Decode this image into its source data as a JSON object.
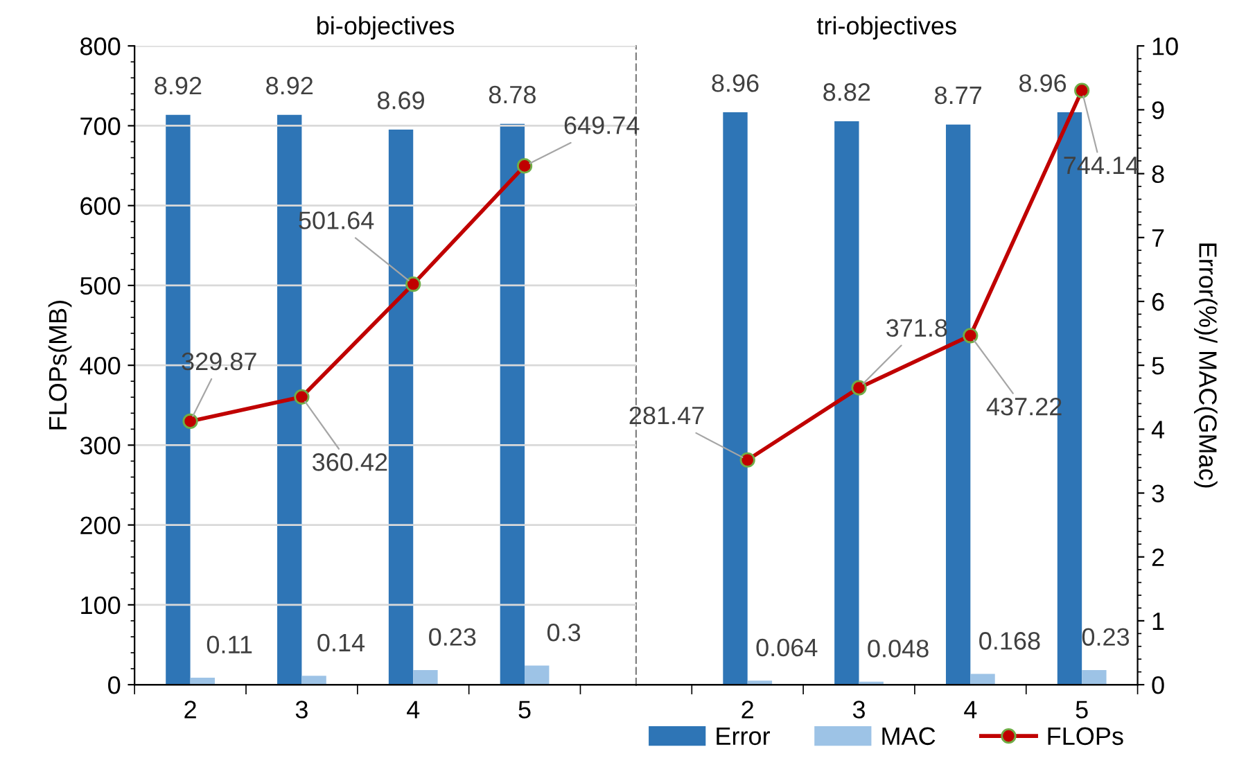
{
  "chart_data": [
    {
      "type": "bar",
      "title": "bi-objectives",
      "ylabel": "FLOPs(MB)",
      "categories": [
        "2",
        "3",
        "4",
        "5"
      ],
      "series": [
        {
          "color": "#2e75b6",
          "axis": "y2",
          "values": [
            8.92,
            8.92,
            8.69,
            8.78
          ]
        },
        {
          "color": "#9dc3e6",
          "axis": "y2",
          "values": [
            0.11,
            0.14,
            0.23,
            0.3
          ]
        },
        {
          "type": "line",
          "color": "#c00000",
          "marker": "circle",
          "values": [
            329.87,
            360.42,
            501.64,
            649.74
          ]
        }
      ],
      "ylim": [
        0,
        800
      ],
      "yticks": [
        0,
        100,
        200,
        300,
        400,
        500,
        600,
        700,
        800
      ],
      "y2lim": [
        0,
        10
      ],
      "grid": "y",
      "data_labels": true,
      "tick_labels": [
        "x",
        "y"
      ],
      "legend": false
    },
    {
      "type": "bar",
      "title": "tri-objectives",
      "y2label": "Error(%)/ MAC(GMac)",
      "categories": [
        "2",
        "3",
        "4",
        "5"
      ],
      "series": [
        {
          "name": "Error",
          "color": "#2e75b6",
          "axis": "y2",
          "values": [
            8.96,
            8.82,
            8.77,
            8.96
          ]
        },
        {
          "name": "MAC",
          "color": "#9dc3e6",
          "axis": "y2",
          "values": [
            0.064,
            0.048,
            0.168,
            0.23
          ]
        },
        {
          "name": "FLOPs",
          "type": "line",
          "color": "#c00000",
          "marker": "circle",
          "values": [
            281.47,
            371.8,
            437.22,
            744.14
          ]
        }
      ],
      "ylim": [
        0,
        800
      ],
      "y2lim": [
        0,
        10
      ],
      "y2ticks": [
        0,
        1,
        2,
        3,
        4,
        5,
        6,
        7,
        8,
        9,
        10
      ],
      "grid": "y",
      "data_labels": true,
      "tick_labels": [
        "x",
        "y2"
      ],
      "legend": "bottom"
    }
  ]
}
